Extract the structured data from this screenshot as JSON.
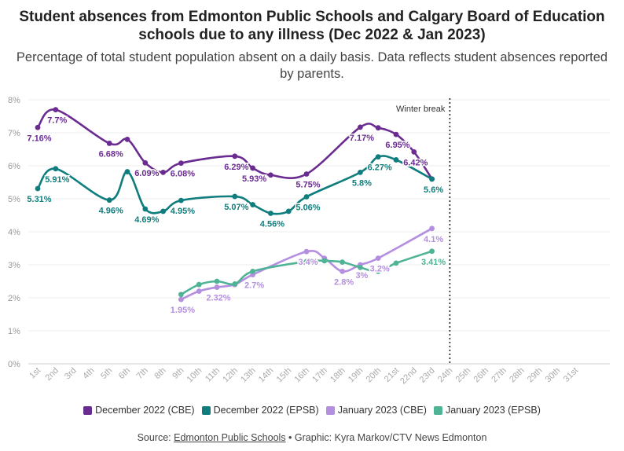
{
  "chart_data": {
    "type": "line",
    "title": "Student absences from Edmonton Public Schools and Calgary Board of Education schools due to any illness (Dec 2022 & Jan 2023)",
    "subtitle": "Percentage of total student population absent on a daily basis. Data reflects student absences reported by parents.",
    "categories": [
      "1st",
      "2nd",
      "3rd",
      "4th",
      "5th",
      "6th",
      "7th",
      "8th",
      "9th",
      "10th",
      "11th",
      "12th",
      "13th",
      "14th",
      "15th",
      "16th",
      "17th",
      "18th",
      "19th",
      "20th",
      "21st",
      "22nd",
      "23rd",
      "24th",
      "25th",
      "26th",
      "27th",
      "28th",
      "29th",
      "30th",
      "31st"
    ],
    "y_ticks": [
      "0%",
      "1%",
      "2%",
      "3%",
      "4%",
      "5%",
      "6%",
      "7%",
      "8%"
    ],
    "ylim": [
      0,
      8
    ],
    "annotation": "Winter break",
    "annotation_day": 24,
    "series": [
      {
        "name": "December 2022 (CBE)",
        "color": "#6a2c91",
        "points": [
          [
            1,
            7.16
          ],
          [
            2,
            7.7
          ],
          [
            5,
            6.68
          ],
          [
            6,
            6.8
          ],
          [
            7,
            6.09
          ],
          [
            8,
            5.8
          ],
          [
            9,
            6.08
          ],
          [
            12,
            6.29
          ],
          [
            13,
            5.93
          ],
          [
            14,
            5.72
          ],
          [
            16,
            5.75
          ],
          [
            19,
            7.17
          ],
          [
            20,
            7.15
          ],
          [
            21,
            6.95
          ],
          [
            22,
            6.42
          ],
          [
            23,
            5.6
          ]
        ],
        "labels": [
          [
            1,
            7.16,
            "7.16%"
          ],
          [
            2,
            7.7,
            "7.7%"
          ],
          [
            5,
            6.68,
            "6.68%"
          ],
          [
            7,
            6.09,
            "6.09%"
          ],
          [
            9,
            6.08,
            "6.08%"
          ],
          [
            12,
            6.29,
            "6.29%"
          ],
          [
            13,
            5.93,
            "5.93%"
          ],
          [
            16,
            5.75,
            "5.75%"
          ],
          [
            19,
            7.17,
            "7.17%"
          ],
          [
            21,
            6.95,
            "6.95%"
          ],
          [
            22,
            6.42,
            "6.42%"
          ]
        ]
      },
      {
        "name": "December 2022 (EPSB)",
        "color": "#0f7d7d",
        "points": [
          [
            1,
            5.31
          ],
          [
            2,
            5.91
          ],
          [
            5,
            4.96
          ],
          [
            6,
            5.82
          ],
          [
            7,
            4.69
          ],
          [
            8,
            4.62
          ],
          [
            9,
            4.95
          ],
          [
            12,
            5.07
          ],
          [
            13,
            4.82
          ],
          [
            14,
            4.56
          ],
          [
            15,
            4.62
          ],
          [
            16,
            5.06
          ],
          [
            19,
            5.8
          ],
          [
            20,
            6.27
          ],
          [
            21,
            6.18
          ],
          [
            23,
            5.6
          ]
        ],
        "labels": [
          [
            1,
            5.31,
            "5.31%"
          ],
          [
            2,
            5.91,
            "5.91%"
          ],
          [
            5,
            4.96,
            "4.96%"
          ],
          [
            7,
            4.69,
            "4.69%"
          ],
          [
            9,
            4.95,
            "4.95%"
          ],
          [
            12,
            5.07,
            "5.07%"
          ],
          [
            14,
            4.56,
            "4.56%"
          ],
          [
            16,
            5.06,
            "5.06%"
          ],
          [
            19,
            5.8,
            "5.8%"
          ],
          [
            20,
            6.27,
            "6.27%"
          ],
          [
            23,
            5.6,
            "5.6%"
          ]
        ]
      },
      {
        "name": "January 2023 (CBE)",
        "color": "#b48fe0",
        "points": [
          [
            9,
            1.95
          ],
          [
            10,
            2.2
          ],
          [
            11,
            2.32
          ],
          [
            12,
            2.4
          ],
          [
            13,
            2.7
          ],
          [
            16,
            3.4
          ],
          [
            17,
            3.2
          ],
          [
            18,
            2.8
          ],
          [
            19,
            3.0
          ],
          [
            20,
            3.2
          ],
          [
            23,
            4.1
          ]
        ],
        "labels": [
          [
            9,
            1.95,
            "1.95%"
          ],
          [
            11,
            2.32,
            "2.32%"
          ],
          [
            13,
            2.7,
            "2.7%"
          ],
          [
            16,
            3.4,
            "3.4%"
          ],
          [
            18,
            2.8,
            "2.8%"
          ],
          [
            19,
            3.0,
            "3%"
          ],
          [
            20,
            3.2,
            "3.2%"
          ],
          [
            23,
            4.1,
            "4.1%"
          ]
        ]
      },
      {
        "name": "January 2023 (EPSB)",
        "color": "#4fb396",
        "points": [
          [
            9,
            2.1
          ],
          [
            10,
            2.4
          ],
          [
            11,
            2.5
          ],
          [
            12,
            2.42
          ],
          [
            13,
            2.8
          ],
          [
            16,
            3.1
          ],
          [
            17,
            3.12
          ],
          [
            18,
            3.08
          ],
          [
            19,
            2.92
          ],
          [
            20,
            2.8
          ],
          [
            21,
            3.05
          ],
          [
            23,
            3.41
          ]
        ],
        "labels": [
          [
            23,
            3.41,
            "3.41%"
          ]
        ]
      }
    ]
  },
  "legend": {
    "items": [
      {
        "label": "December 2022 (CBE)",
        "color": "#6a2c91"
      },
      {
        "label": "December 2022 (EPSB)",
        "color": "#0f7d7d"
      },
      {
        "label": "January 2023 (CBE)",
        "color": "#b48fe0"
      },
      {
        "label": "January 2023 (EPSB)",
        "color": "#4fb396"
      }
    ]
  },
  "source": {
    "prefix": "Source: ",
    "link": "Edmonton Public Schools",
    "suffix": " • Graphic: Kyra Markov/CTV News Edmonton"
  }
}
